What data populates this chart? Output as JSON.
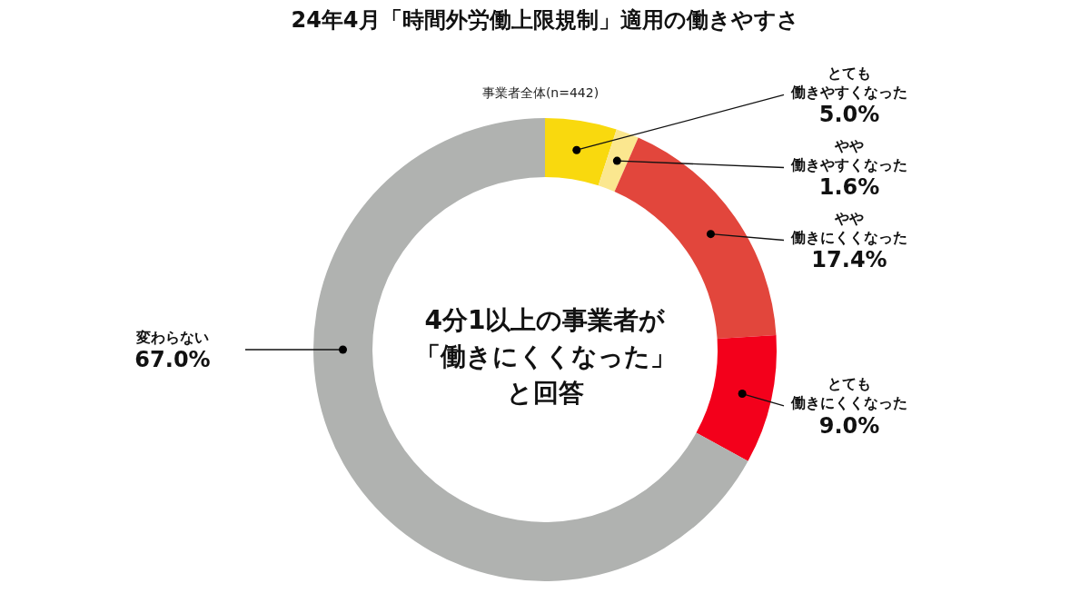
{
  "chart_data": {
    "type": "donut",
    "title": "24年4月「時間外労働上限規制」適用の働きやすさ",
    "subtitle": "事業者全体(n=442)",
    "categories": [
      "とても働きやすくなった",
      "やや働きやすくなった",
      "やや働きにくくなった",
      "とても働きにくくなった",
      "変わらない"
    ],
    "values": [
      5.0,
      1.6,
      17.4,
      9.0,
      67.0
    ],
    "colors": [
      "#f9d90e",
      "#fbe78f",
      "#e2463c",
      "#f3001b",
      "#b0b2b0"
    ],
    "value_labels": [
      "5.0%",
      "1.6%",
      "17.4%",
      "9.0%",
      "67.0%"
    ],
    "annotations": [
      "4分1以上の事業者が「働きにくくなった」と回答"
    ]
  }
}
